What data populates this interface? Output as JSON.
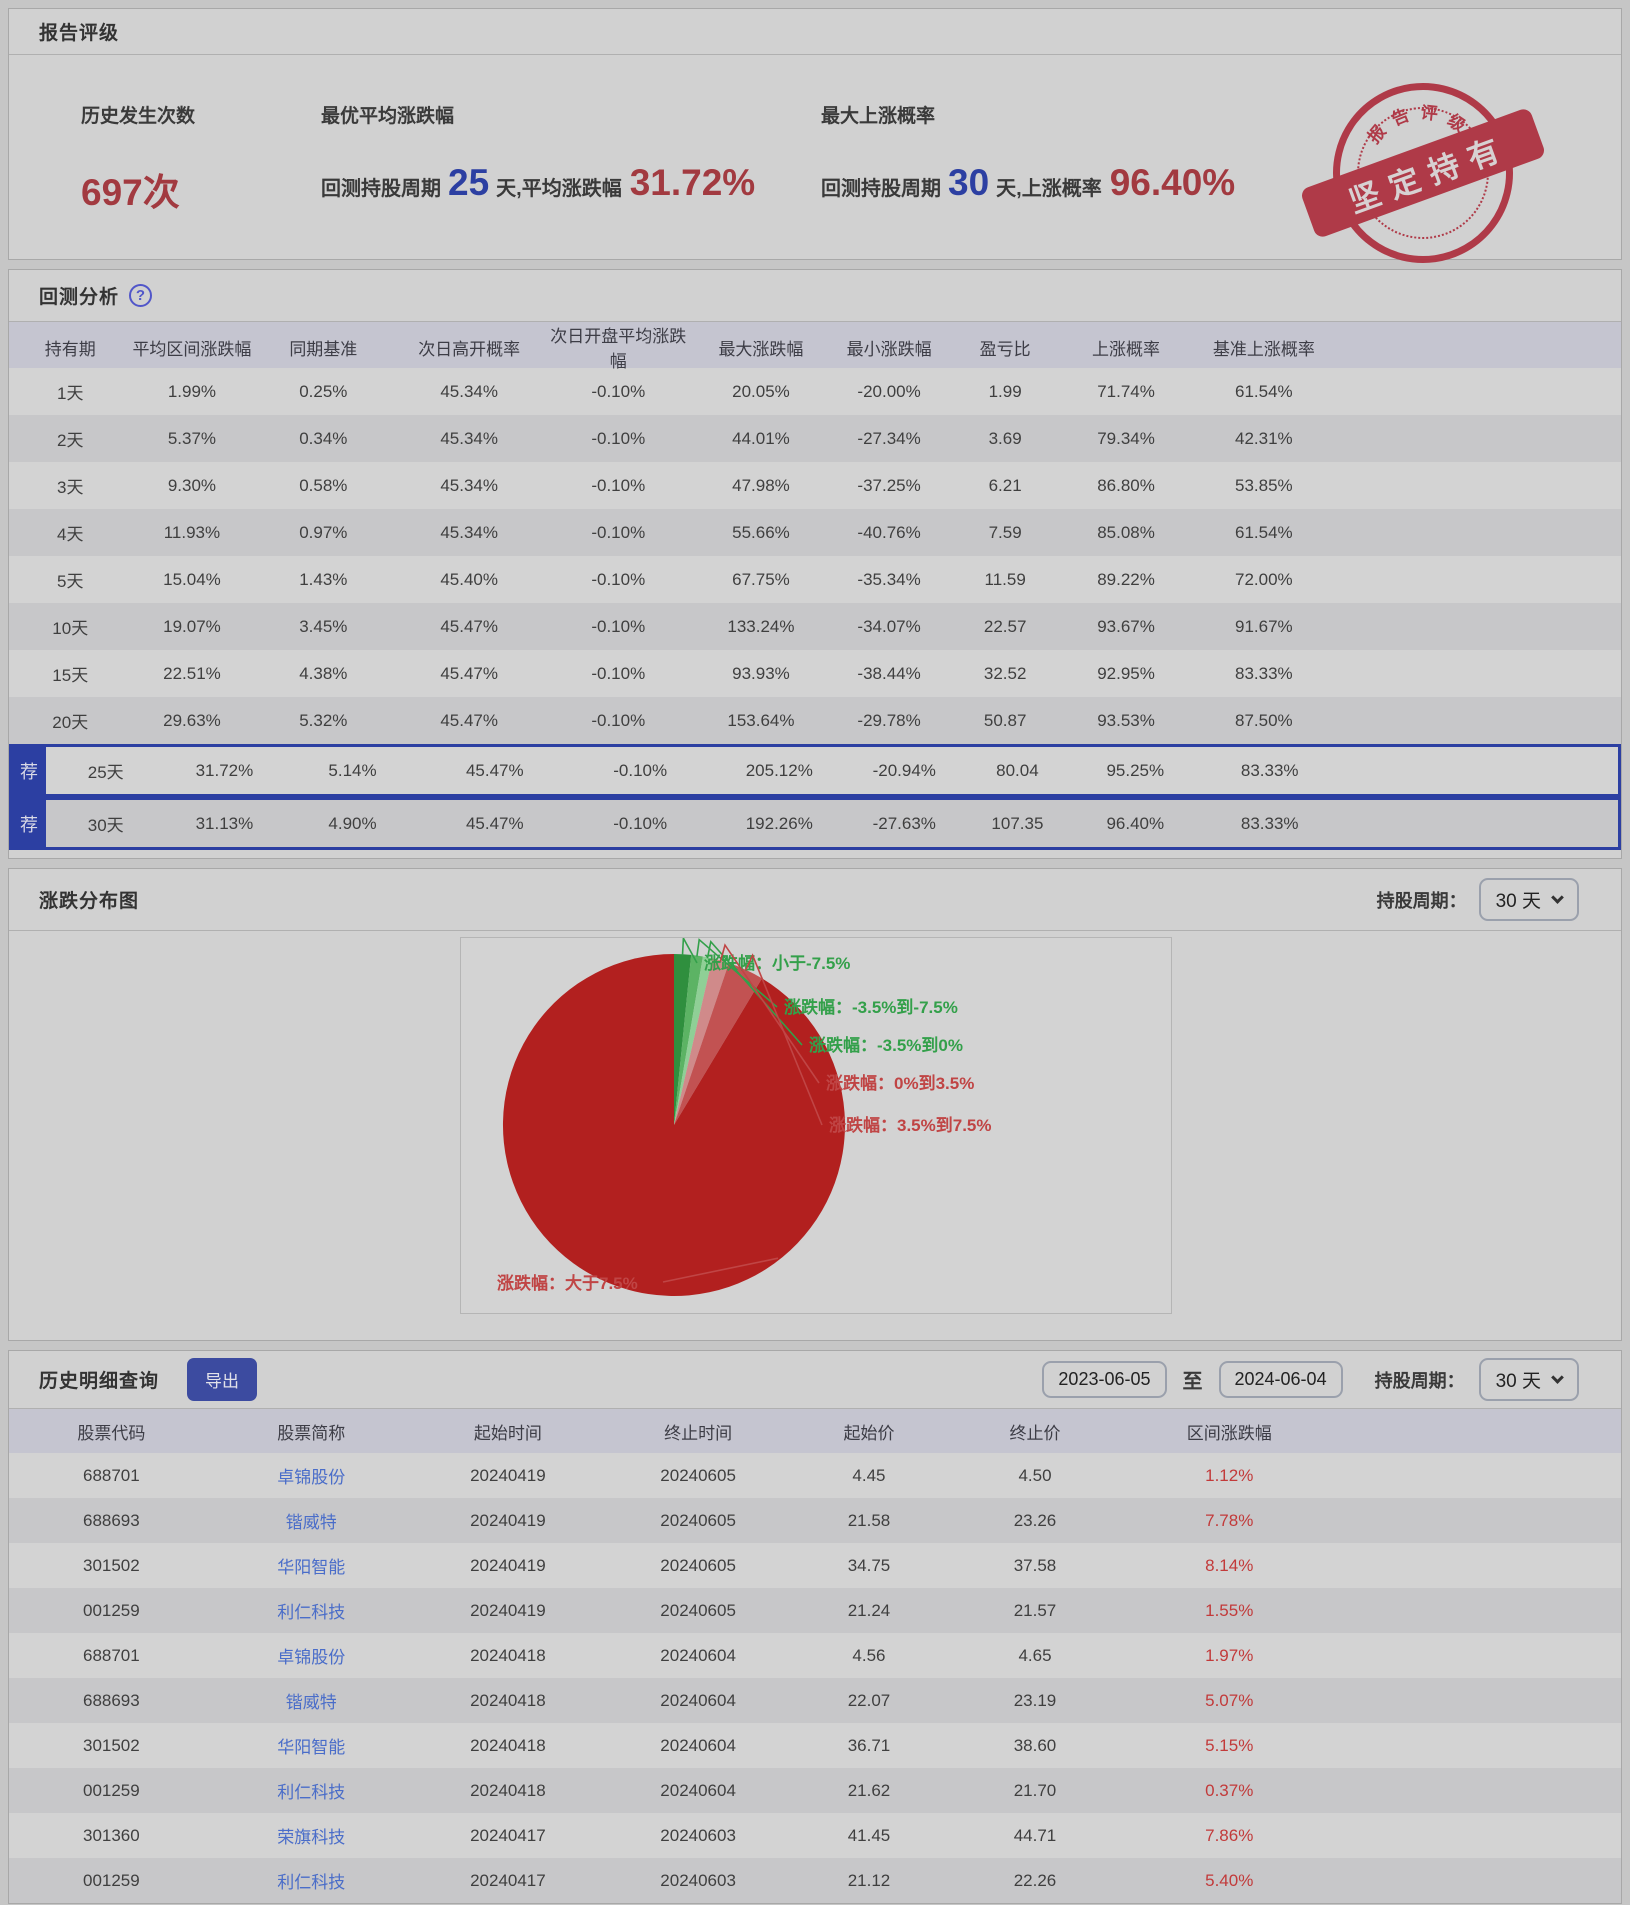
{
  "rating": {
    "title": "报告评级",
    "occurrences": {
      "label": "历史发生次数",
      "value": "697次"
    },
    "best_avg": {
      "label": "最优平均涨跌幅",
      "prefix": "回测持股周期",
      "days": "25",
      "middle": "天,平均涨跌幅",
      "value": "31.72%"
    },
    "max_prob": {
      "label": "最大上涨概率",
      "prefix": "回测持股周期",
      "days": "30",
      "middle": "天,上涨概率",
      "value": "96.40%"
    },
    "stamp": {
      "arc_text": "报告评级",
      "banner_text": "坚定持有"
    }
  },
  "backtest": {
    "title": "回测分析",
    "help_icon": "?",
    "recommend_badge": "荐",
    "columns": [
      "持有期",
      "平均区间涨跌幅",
      "同期基准",
      "次日高开概率",
      "次日开盘平均涨跌幅",
      "最大涨跌幅",
      "最小涨跌幅",
      "盈亏比",
      "上涨概率",
      "基准上涨概率"
    ],
    "rows": [
      {
        "recommended": false,
        "cells": [
          "1天",
          "1.99%",
          "0.25%",
          "45.34%",
          "-0.10%",
          "20.05%",
          "-20.00%",
          "1.99",
          "71.74%",
          "61.54%"
        ]
      },
      {
        "recommended": false,
        "cells": [
          "2天",
          "5.37%",
          "0.34%",
          "45.34%",
          "-0.10%",
          "44.01%",
          "-27.34%",
          "3.69",
          "79.34%",
          "42.31%"
        ]
      },
      {
        "recommended": false,
        "cells": [
          "3天",
          "9.30%",
          "0.58%",
          "45.34%",
          "-0.10%",
          "47.98%",
          "-37.25%",
          "6.21",
          "86.80%",
          "53.85%"
        ]
      },
      {
        "recommended": false,
        "cells": [
          "4天",
          "11.93%",
          "0.97%",
          "45.34%",
          "-0.10%",
          "55.66%",
          "-40.76%",
          "7.59",
          "85.08%",
          "61.54%"
        ]
      },
      {
        "recommended": false,
        "cells": [
          "5天",
          "15.04%",
          "1.43%",
          "45.40%",
          "-0.10%",
          "67.75%",
          "-35.34%",
          "11.59",
          "89.22%",
          "72.00%"
        ]
      },
      {
        "recommended": false,
        "cells": [
          "10天",
          "19.07%",
          "3.45%",
          "45.47%",
          "-0.10%",
          "133.24%",
          "-34.07%",
          "22.57",
          "93.67%",
          "91.67%"
        ]
      },
      {
        "recommended": false,
        "cells": [
          "15天",
          "22.51%",
          "4.38%",
          "45.47%",
          "-0.10%",
          "93.93%",
          "-38.44%",
          "32.52",
          "92.95%",
          "83.33%"
        ]
      },
      {
        "recommended": false,
        "cells": [
          "20天",
          "29.63%",
          "5.32%",
          "45.47%",
          "-0.10%",
          "153.64%",
          "-29.78%",
          "50.87",
          "93.53%",
          "87.50%"
        ]
      },
      {
        "recommended": true,
        "cells": [
          "25天",
          "31.72%",
          "5.14%",
          "45.47%",
          "-0.10%",
          "205.12%",
          "-20.94%",
          "80.04",
          "95.25%",
          "83.33%"
        ]
      },
      {
        "recommended": true,
        "cells": [
          "30天",
          "31.13%",
          "4.90%",
          "45.47%",
          "-0.10%",
          "192.26%",
          "-27.63%",
          "107.35",
          "96.40%",
          "83.33%"
        ]
      }
    ]
  },
  "distribution": {
    "title": "涨跌分布图",
    "period_label": "持股周期：",
    "period_value": "30 天"
  },
  "chart_data": {
    "type": "pie",
    "title": "涨跌分布图",
    "holding_period": "30 天",
    "slices": [
      {
        "label": "涨跌幅：小于-7.5%",
        "value": 1.6,
        "color": "#2f8f3e",
        "label_color": "#33a04a"
      },
      {
        "label": "涨跌幅：-3.5%到-7.5%",
        "value": 1.1,
        "color": "#5cb364",
        "label_color": "#33a04a"
      },
      {
        "label": "涨跌幅：-3.5%到0%",
        "value": 0.9,
        "color": "#8fcf96",
        "label_color": "#33a04a"
      },
      {
        "label": "涨跌幅：0%到3.5%",
        "value": 1.6,
        "color": "#d08a8a",
        "label_color": "#c04545"
      },
      {
        "label": "涨跌幅：3.5%到7.5%",
        "value": 3.4,
        "color": "#c25252",
        "label_color": "#c04545"
      },
      {
        "label": "涨跌幅：大于7.5%",
        "value": 91.4,
        "color": "#b2201f",
        "label_color": "#c04545"
      }
    ],
    "legend_position": "callout-labels"
  },
  "history": {
    "title": "历史明细查询",
    "export_label": "导出",
    "date_from": "2023-06-05",
    "date_separator": "至",
    "date_to": "2024-06-04",
    "period_label": "持股周期：",
    "period_value": "30 天",
    "columns": [
      "股票代码",
      "股票简称",
      "起始时间",
      "终止时间",
      "起始价",
      "终止价",
      "区间涨跌幅"
    ],
    "rows": [
      {
        "code": "688701",
        "name": "卓锦股份",
        "start_date": "20240419",
        "end_date": "20240605",
        "start_price": "4.45",
        "end_price": "4.50",
        "change": "1.12%"
      },
      {
        "code": "688693",
        "name": "锴威特",
        "start_date": "20240419",
        "end_date": "20240605",
        "start_price": "21.58",
        "end_price": "23.26",
        "change": "7.78%"
      },
      {
        "code": "301502",
        "name": "华阳智能",
        "start_date": "20240419",
        "end_date": "20240605",
        "start_price": "34.75",
        "end_price": "37.58",
        "change": "8.14%"
      },
      {
        "code": "001259",
        "name": "利仁科技",
        "start_date": "20240419",
        "end_date": "20240605",
        "start_price": "21.24",
        "end_price": "21.57",
        "change": "1.55%"
      },
      {
        "code": "688701",
        "name": "卓锦股份",
        "start_date": "20240418",
        "end_date": "20240604",
        "start_price": "4.56",
        "end_price": "4.65",
        "change": "1.97%"
      },
      {
        "code": "688693",
        "name": "锴威特",
        "start_date": "20240418",
        "end_date": "20240604",
        "start_price": "22.07",
        "end_price": "23.19",
        "change": "5.07%"
      },
      {
        "code": "301502",
        "name": "华阳智能",
        "start_date": "20240418",
        "end_date": "20240604",
        "start_price": "36.71",
        "end_price": "38.60",
        "change": "5.15%"
      },
      {
        "code": "001259",
        "name": "利仁科技",
        "start_date": "20240418",
        "end_date": "20240604",
        "start_price": "21.62",
        "end_price": "21.70",
        "change": "0.37%"
      },
      {
        "code": "301360",
        "name": "荣旗科技",
        "start_date": "20240417",
        "end_date": "20240603",
        "start_price": "41.45",
        "end_price": "44.71",
        "change": "7.86%"
      },
      {
        "code": "001259",
        "name": "利仁科技",
        "start_date": "20240417",
        "end_date": "20240603",
        "start_price": "21.12",
        "end_price": "22.26",
        "change": "5.40%"
      }
    ]
  },
  "colors": {
    "accent_red": "#a23a40",
    "accent_blue": "#2c3fa2",
    "link_blue": "#4a6dc9",
    "table_change_red": "#c23a3a",
    "stamp_red": "#ad2f3e",
    "table_header_bg": "#c5c5d0"
  }
}
